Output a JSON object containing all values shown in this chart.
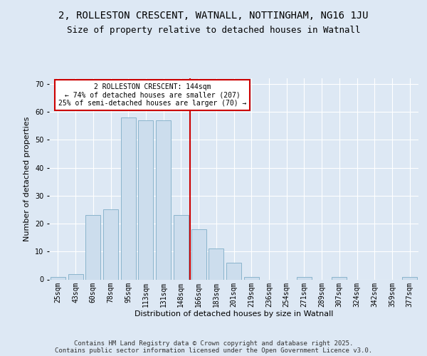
{
  "title_line1": "2, ROLLESTON CRESCENT, WATNALL, NOTTINGHAM, NG16 1JU",
  "title_line2": "Size of property relative to detached houses in Watnall",
  "xlabel": "Distribution of detached houses by size in Watnall",
  "ylabel": "Number of detached properties",
  "categories": [
    "25sqm",
    "43sqm",
    "60sqm",
    "78sqm",
    "95sqm",
    "113sqm",
    "131sqm",
    "148sqm",
    "166sqm",
    "183sqm",
    "201sqm",
    "219sqm",
    "236sqm",
    "254sqm",
    "271sqm",
    "289sqm",
    "307sqm",
    "324sqm",
    "342sqm",
    "359sqm",
    "377sqm"
  ],
  "values": [
    1,
    2,
    23,
    25,
    58,
    57,
    57,
    23,
    18,
    11,
    6,
    1,
    0,
    0,
    1,
    0,
    1,
    0,
    0,
    0,
    1
  ],
  "bar_color": "#ccdded",
  "bar_edge_color": "#8ab4cc",
  "vline_x_idx": 7,
  "vline_color": "#cc0000",
  "annotation_text": "2 ROLLESTON CRESCENT: 144sqm\n← 74% of detached houses are smaller (207)\n25% of semi-detached houses are larger (70) →",
  "annotation_box_facecolor": "#ffffff",
  "annotation_box_edgecolor": "#cc0000",
  "ylim": [
    0,
    72
  ],
  "yticks": [
    0,
    10,
    20,
    30,
    40,
    50,
    60,
    70
  ],
  "bg_color": "#dde8f4",
  "plot_bg_color": "#dde8f4",
  "footer_text": "Contains HM Land Registry data © Crown copyright and database right 2025.\nContains public sector information licensed under the Open Government Licence v3.0.",
  "title_fontsize": 10,
  "subtitle_fontsize": 9,
  "axis_label_fontsize": 8,
  "tick_fontsize": 7,
  "footer_fontsize": 6.5
}
